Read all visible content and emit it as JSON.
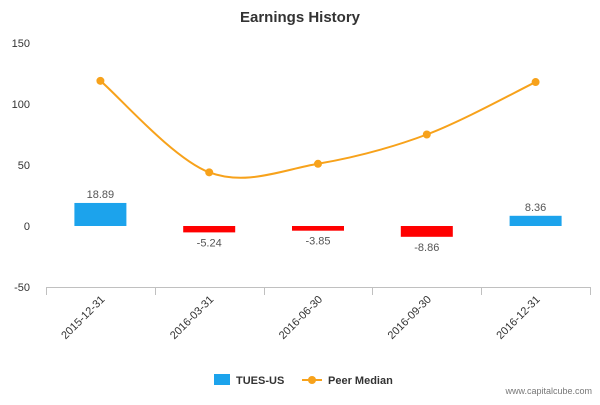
{
  "chart_data": {
    "type": "bar",
    "title": "Earnings History",
    "categories": [
      "2015-12-31",
      "2016-03-31",
      "2016-06-30",
      "2016-09-30",
      "2016-12-31"
    ],
    "series": [
      {
        "name": "TUES-US",
        "kind": "bar",
        "values": [
          18.89,
          -5.24,
          -3.85,
          -8.86,
          8.36
        ],
        "value_labels": [
          "18.89",
          "-5.24",
          "-3.85",
          "-8.86",
          "8.36"
        ],
        "color_positive": "#1ca3ec",
        "color_negative": "#ff0000"
      },
      {
        "name": "Peer Median",
        "kind": "line",
        "values": [
          119,
          44,
          51,
          75,
          118
        ],
        "color": "#f7a21b"
      }
    ],
    "ylim": [
      -50,
      150
    ],
    "yticks": [
      150,
      100,
      50,
      0,
      -50
    ],
    "ytick_labels": [
      "150",
      "100",
      "50",
      "0",
      "-50"
    ],
    "grid": false,
    "legend_position": "bottom-center"
  },
  "footer": {
    "watermark": "www.capitalcube.com"
  },
  "colors": {
    "axis": "#c0c0c0",
    "text": "#333333",
    "label": "#555555"
  }
}
